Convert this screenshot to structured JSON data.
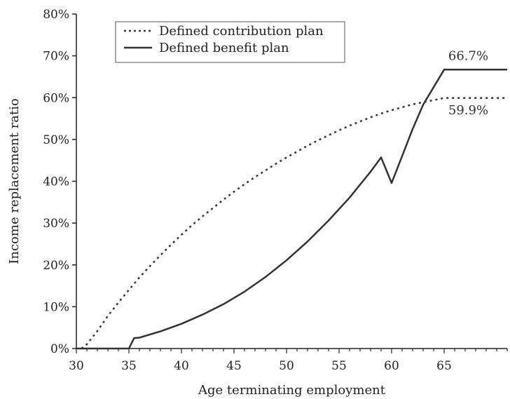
{
  "chart_data": {
    "type": "line",
    "title": "",
    "xlabel": "Age terminating employment",
    "ylabel": "Income replacement ratio",
    "xlim": [
      30,
      71
    ],
    "ylim": [
      0,
      80
    ],
    "x_ticks": [
      30,
      35,
      40,
      45,
      50,
      55,
      60,
      65
    ],
    "x_tick_labels": [
      "30",
      "35",
      "40",
      "45",
      "50",
      "55",
      "60",
      "65"
    ],
    "y_ticks": [
      0,
      10,
      20,
      30,
      40,
      50,
      60,
      70,
      80
    ],
    "y_tick_labels": [
      "0%",
      "10%",
      "20%",
      "30%",
      "40%",
      "50%",
      "60%",
      "70%",
      "80%"
    ],
    "grid": false,
    "legend_position": "top-left",
    "series": [
      {
        "name": "Defined contribution plan",
        "style": "dotted",
        "color": "#333333",
        "points": [
          [
            30.5,
            0
          ],
          [
            31,
            1
          ],
          [
            32,
            4.2
          ],
          [
            33,
            7.8
          ],
          [
            34,
            11
          ],
          [
            35,
            14
          ],
          [
            36,
            17
          ],
          [
            37,
            19.7
          ],
          [
            38,
            22.3
          ],
          [
            39,
            24.8
          ],
          [
            40,
            27.2
          ],
          [
            41,
            29.5
          ],
          [
            42,
            31.6
          ],
          [
            43,
            33.6
          ],
          [
            44,
            35.6
          ],
          [
            45,
            37.5
          ],
          [
            46,
            39.3
          ],
          [
            47,
            41
          ],
          [
            48,
            42.6
          ],
          [
            49,
            44.2
          ],
          [
            50,
            45.7
          ],
          [
            51,
            47.1
          ],
          [
            52,
            48.5
          ],
          [
            53,
            49.8
          ],
          [
            54,
            51
          ],
          [
            55,
            52.2
          ],
          [
            56,
            53.3
          ],
          [
            57,
            54.3
          ],
          [
            58,
            55.3
          ],
          [
            59,
            56.2
          ],
          [
            60,
            57
          ],
          [
            61,
            57.7
          ],
          [
            62,
            58.4
          ],
          [
            63,
            58.9
          ],
          [
            64,
            59.4
          ],
          [
            65,
            59.9
          ],
          [
            71,
            59.9
          ]
        ]
      },
      {
        "name": "Defined benefit plan",
        "style": "solid",
        "color": "#333333",
        "points": [
          [
            30,
            0
          ],
          [
            35,
            0
          ],
          [
            35.5,
            2.5
          ],
          [
            36,
            2.6
          ],
          [
            38,
            4.1
          ],
          [
            40,
            5.9
          ],
          [
            42,
            8.1
          ],
          [
            44,
            10.6
          ],
          [
            46,
            13.6
          ],
          [
            48,
            17.1
          ],
          [
            50,
            21.1
          ],
          [
            52,
            25.6
          ],
          [
            54,
            30.6
          ],
          [
            56,
            36.1
          ],
          [
            58,
            42.3
          ],
          [
            59,
            45.7
          ],
          [
            60,
            39.6
          ],
          [
            61,
            46
          ],
          [
            62,
            52.5
          ],
          [
            63,
            58.3
          ],
          [
            64,
            62.5
          ],
          [
            65,
            66.7
          ],
          [
            71,
            66.7
          ]
        ]
      }
    ],
    "annotations": [
      {
        "text": "66.7%",
        "x": 67.3,
        "y": 66.7
      },
      {
        "text": "59.9%",
        "x": 67.3,
        "y": 59.9
      }
    ]
  }
}
